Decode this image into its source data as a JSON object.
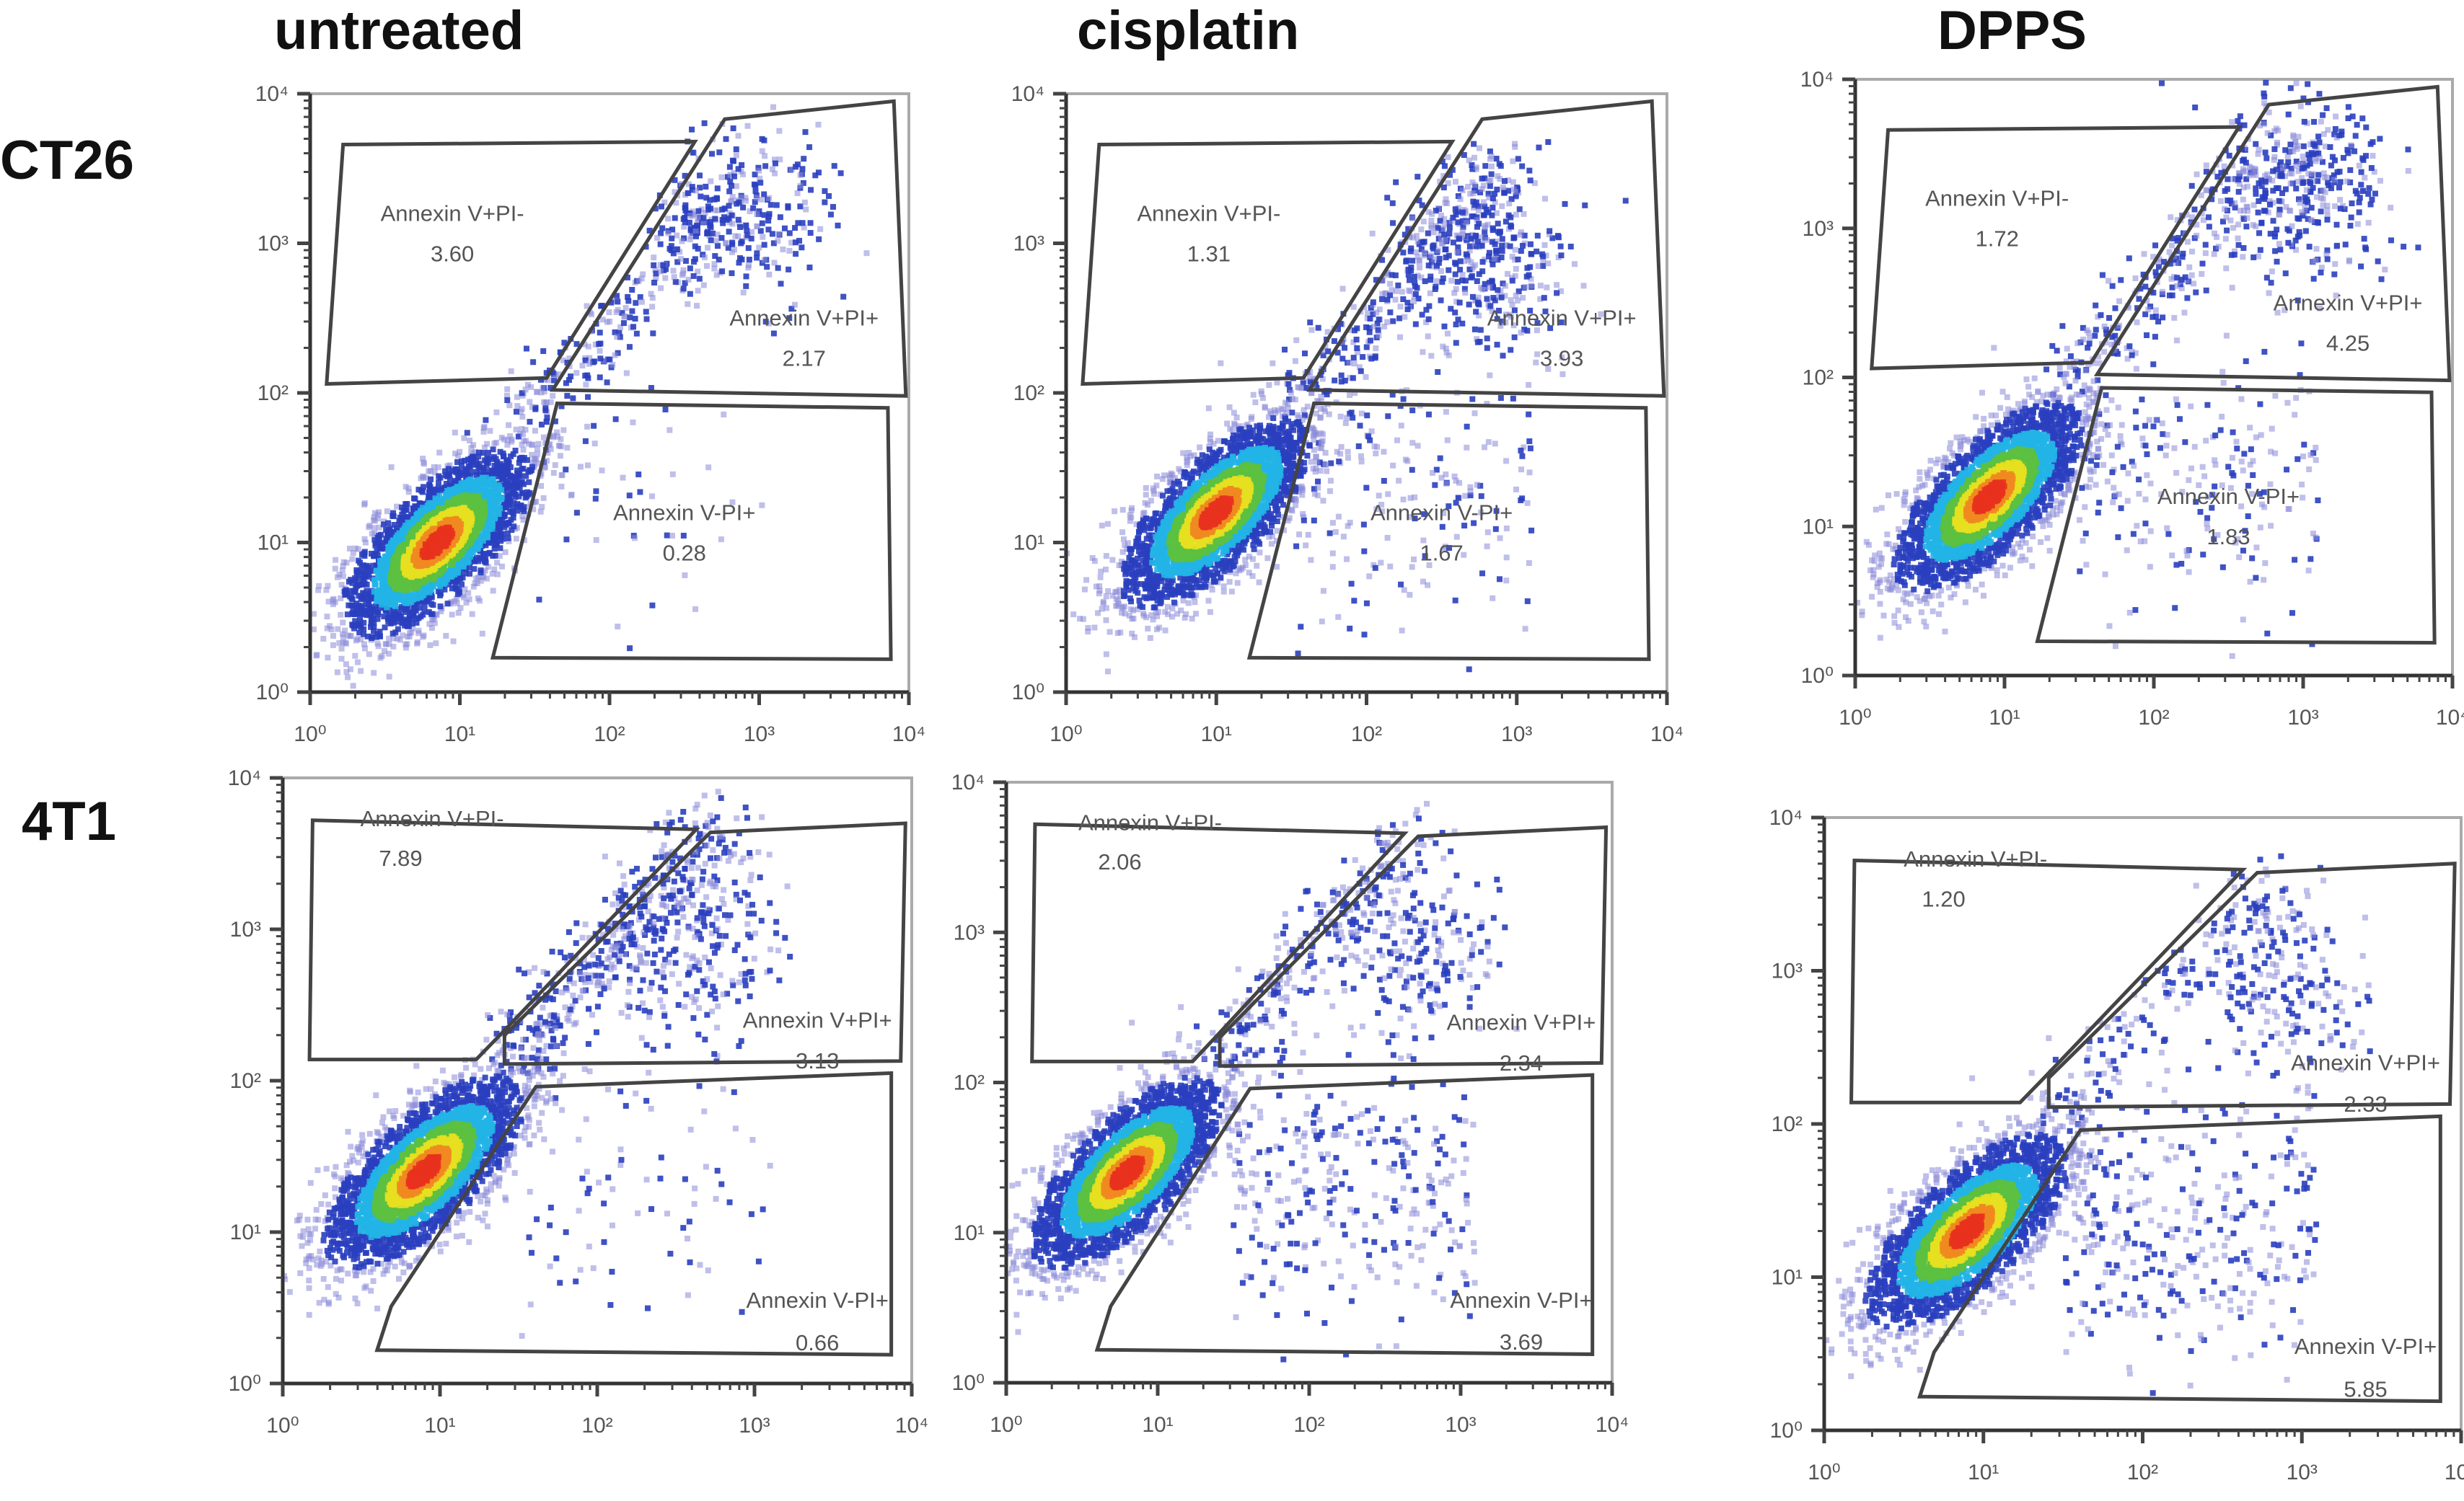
{
  "columns": [
    "untreated",
    "cisplatin",
    "DPPS"
  ],
  "rows": [
    "CT26",
    "4T1"
  ],
  "colors": {
    "gate": "#444444",
    "density": [
      "#8a8ad8",
      "#2a3fbf",
      "#22b4e6",
      "#5cc040",
      "#e6e020",
      "#f08a20",
      "#e8321e"
    ]
  },
  "chart_data": {
    "type": "scatter",
    "subtype": "flow cytometry density plot",
    "x_scale": "log",
    "y_scale": "log",
    "xlim": [
      1,
      10000
    ],
    "ylim": [
      1,
      10000
    ],
    "x_tick_labels": [
      "10⁰",
      "10¹",
      "10²",
      "10³",
      "10⁴"
    ],
    "y_tick_labels": [
      "10⁰",
      "10¹",
      "10²",
      "10³",
      "10⁴"
    ],
    "gate_labels": {
      "early": "Annexin V+PI-",
      "late": "Annexin V+PI+",
      "pi": "Annexin V-PI+"
    },
    "panels": [
      {
        "row": "CT26",
        "column": "untreated",
        "early": "3.60",
        "late": "2.17",
        "pi": "0.28"
      },
      {
        "row": "CT26",
        "column": "cisplatin",
        "early": "1.31",
        "late": "3.93",
        "pi": "1.67"
      },
      {
        "row": "CT26",
        "column": "DPPS",
        "early": "1.72",
        "late": "4.25",
        "pi": "1.83"
      },
      {
        "row": "4T1",
        "column": "untreated",
        "early": "7.89",
        "late": "3.13",
        "pi": "0.66"
      },
      {
        "row": "4T1",
        "column": "cisplatin",
        "early": "2.06",
        "late": "2.34",
        "pi": "3.69"
      },
      {
        "row": "4T1",
        "column": "DPPS",
        "early": "1.20",
        "late": "2.33",
        "pi": "5.85"
      }
    ]
  }
}
